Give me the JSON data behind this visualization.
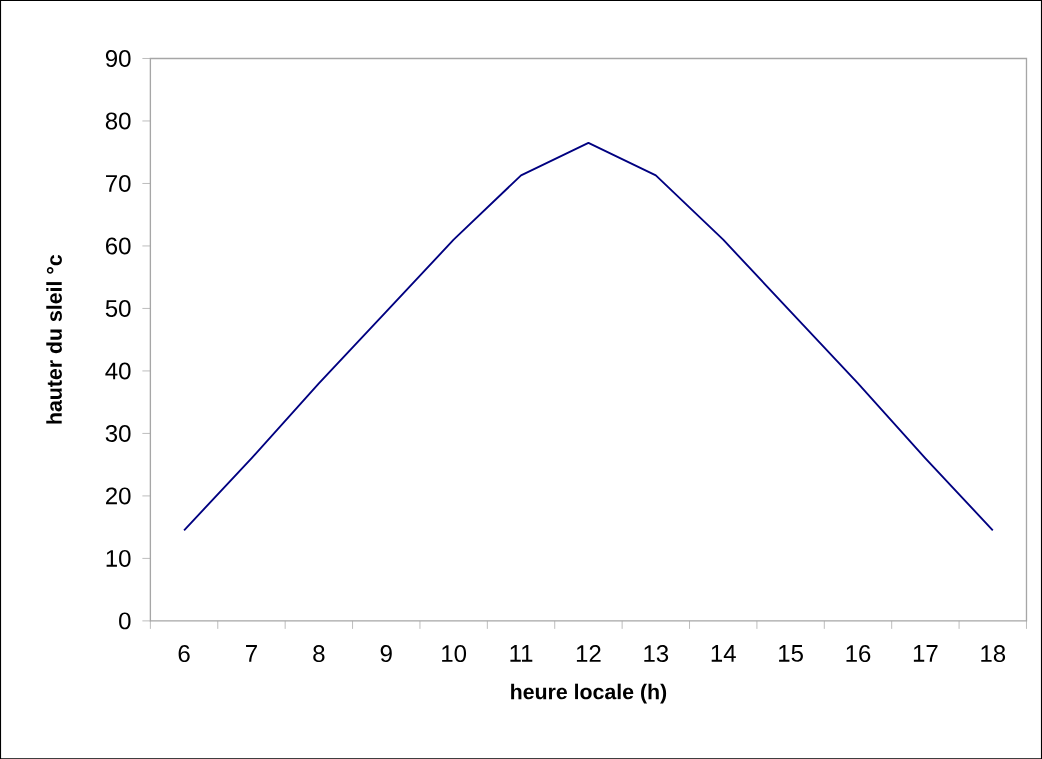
{
  "chart_data": {
    "type": "line",
    "xlabel": "heure locale (h)",
    "ylabel": "hauter du sleil °c",
    "categories": [
      "6",
      "7",
      "8",
      "9",
      "10",
      "11",
      "12",
      "13",
      "14",
      "15",
      "16",
      "17",
      "18"
    ],
    "values": [
      14.5,
      26,
      38,
      49.5,
      61,
      71.3,
      76.5,
      71.3,
      61,
      49.5,
      38,
      26,
      14.5
    ],
    "color": "#000080",
    "ylim": [
      0,
      90
    ],
    "yticks": [
      0,
      10,
      20,
      30,
      40,
      50,
      60,
      70,
      80,
      90
    ]
  }
}
